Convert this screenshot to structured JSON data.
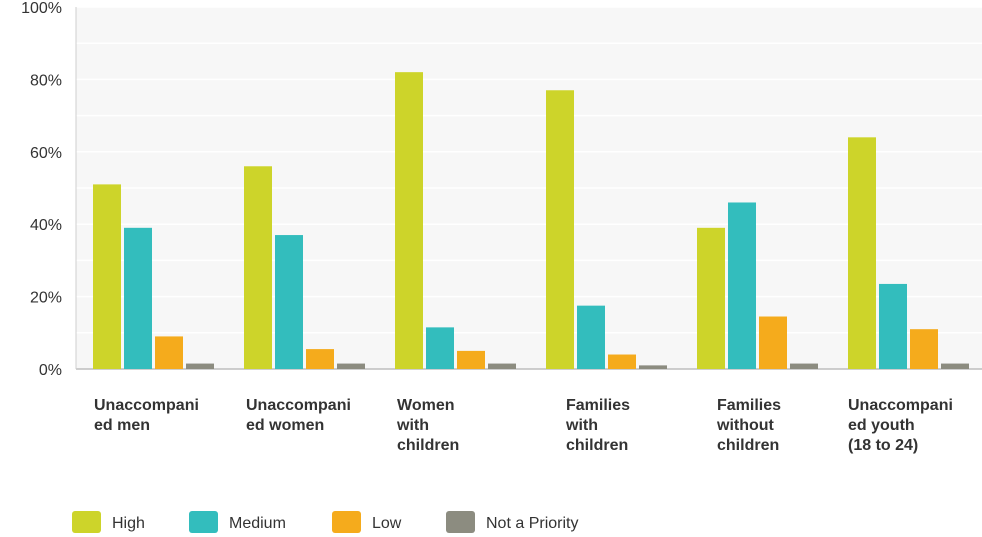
{
  "chart_data": {
    "type": "bar",
    "title": "",
    "xlabel": "",
    "ylabel": "",
    "ylim": [
      0,
      100
    ],
    "yticks": [
      "0%",
      "20%",
      "40%",
      "60%",
      "80%",
      "100%"
    ],
    "grid": true,
    "legend_position": "bottom-left",
    "categories": [
      [
        "Unaccompani",
        "ed men"
      ],
      [
        "Unaccompani",
        "ed women"
      ],
      [
        "Women",
        "with",
        "children"
      ],
      [
        "Families",
        "with",
        "children"
      ],
      [
        "Families",
        "without",
        "children"
      ],
      [
        "Unaccompani",
        "ed youth",
        "(18 to 24)"
      ]
    ],
    "series": [
      {
        "name": "High",
        "color": "#cdd42a",
        "values": [
          51,
          56,
          82,
          77,
          39,
          64
        ]
      },
      {
        "name": "Medium",
        "color": "#33bdbd",
        "values": [
          39,
          37,
          11.5,
          17.5,
          46,
          23.5
        ]
      },
      {
        "name": "Low",
        "color": "#f5ab1c",
        "values": [
          9,
          5.5,
          5,
          4,
          14.5,
          11
        ]
      },
      {
        "name": "Not a Priority",
        "color": "#8c8c80",
        "values": [
          1.5,
          1.5,
          1.5,
          1,
          1.5,
          1.5
        ]
      }
    ]
  }
}
